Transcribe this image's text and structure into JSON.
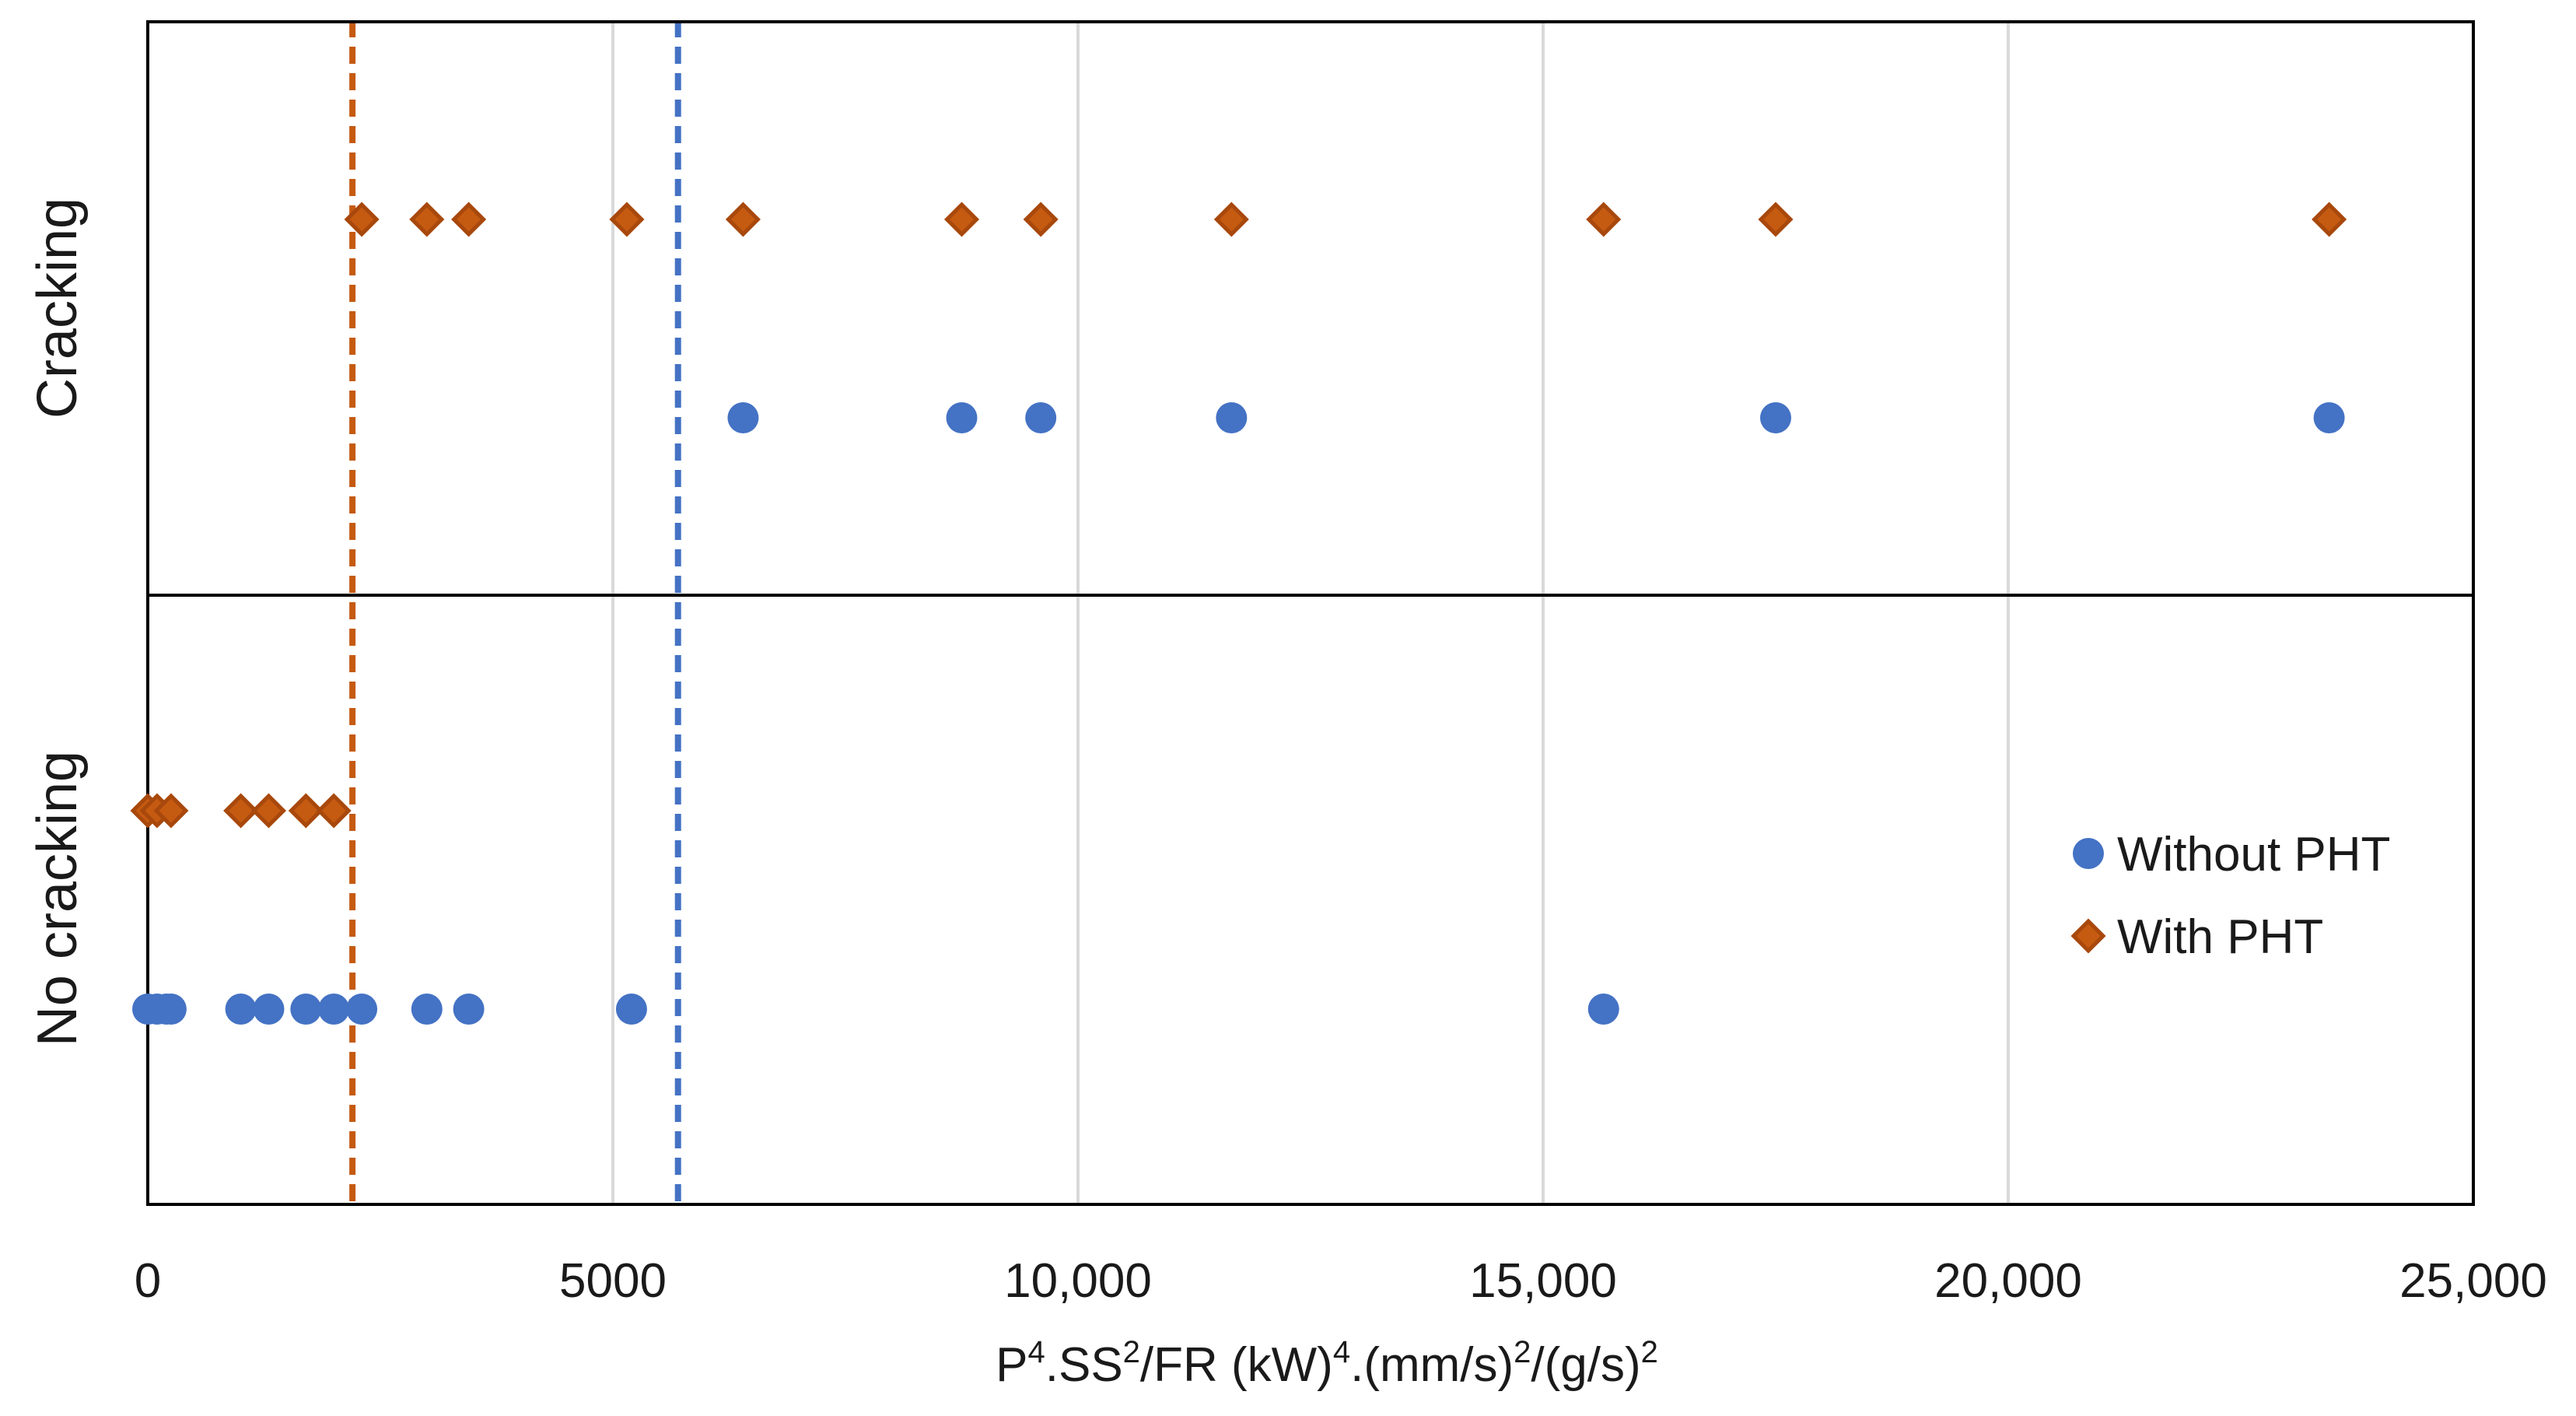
{
  "chart_data": {
    "type": "scatter",
    "title": "",
    "xlabel": {
      "parts": [
        "P",
        "4",
        ".SS",
        "2",
        "/FR  (kW)",
        "4",
        ".(mm/s)",
        "2",
        "/(g/s)",
        "2"
      ],
      "superscript": [
        false,
        true,
        false,
        true,
        false,
        true,
        false,
        true,
        false,
        true
      ]
    },
    "xlim": [
      0,
      25000
    ],
    "xticks": [
      0,
      5000,
      10000,
      15000,
      20000,
      25000
    ],
    "xtick_labels": [
      "0",
      "5000",
      "10,000",
      "15,000",
      "20,000",
      "25,000"
    ],
    "categories": [
      "Cracking",
      "No cracking"
    ],
    "series": [
      {
        "name": "Without PHT",
        "marker": "circle",
        "color": "#4472C4",
        "cracking_x": [
          6400,
          8750,
          9600,
          11650,
          17500,
          23450
        ],
        "no_cracking_x": [
          0,
          100,
          200,
          250,
          1000,
          1300,
          1700,
          2000,
          2300,
          3000,
          3450,
          5200,
          15650
        ]
      },
      {
        "name": "With PHT",
        "marker": "diamond",
        "color": "#C55A11",
        "cracking_x": [
          2300,
          3000,
          3450,
          5150,
          6400,
          8750,
          9600,
          11650,
          15650,
          17500,
          23450
        ],
        "no_cracking_x": [
          0,
          100,
          250,
          1000,
          1300,
          1700,
          2000
        ]
      }
    ],
    "thresholds": [
      {
        "series": "With PHT",
        "x": 2200,
        "color": "#C55A11",
        "style": "dashed"
      },
      {
        "series": "Without PHT",
        "x": 5700,
        "color": "#4472C4",
        "style": "dashed"
      }
    ],
    "grid": "vertical",
    "legend": {
      "position": "right-lower",
      "entries": [
        "Without PHT",
        "With PHT"
      ]
    }
  }
}
